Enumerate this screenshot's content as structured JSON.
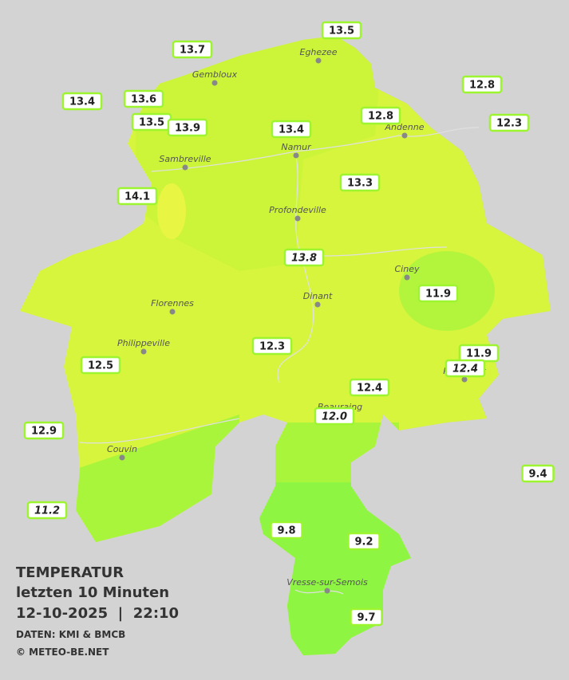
{
  "map": {
    "stations": [
      {
        "label": "13.5"
      },
      {
        "label": "13.7"
      },
      {
        "label": "12.8"
      },
      {
        "label": "13.4"
      },
      {
        "label": "13.6"
      },
      {
        "label": "12.8"
      },
      {
        "label": "12.3"
      },
      {
        "label": "13.5"
      },
      {
        "label": "13.9"
      },
      {
        "label": "13.4"
      },
      {
        "label": "13.3"
      },
      {
        "label": "14.1"
      },
      {
        "label": "13.8",
        "italic": true
      },
      {
        "label": "11.9"
      },
      {
        "label": "12.3"
      },
      {
        "label": "11.9"
      },
      {
        "label": "12.4",
        "italic": true
      },
      {
        "label": "12.5"
      },
      {
        "label": "12.4"
      },
      {
        "label": "12.0",
        "italic": true
      },
      {
        "label": "12.9"
      },
      {
        "label": "9.4"
      },
      {
        "label": "11.2",
        "italic": true
      },
      {
        "label": "9.8"
      },
      {
        "label": "9.2"
      },
      {
        "label": "9.7"
      }
    ],
    "towns": [
      "Eghezee",
      "Gembloux",
      "Andenne",
      "Namur",
      "Sambreville",
      "Profondeville",
      "Ciney",
      "Dinant",
      "Florennes",
      "Philippeville",
      "Rochefort",
      "Beauraing",
      "Couvin",
      "Vresse-sur-Semois"
    ]
  },
  "caption": {
    "title": "TEMPERATUR",
    "subtitle": "letzten 10 Minuten",
    "datetime": "12-10-2025  |  22:10",
    "source": "DATEN: KMI & BMCB",
    "copyright": "© METEO-BE.NET"
  }
}
